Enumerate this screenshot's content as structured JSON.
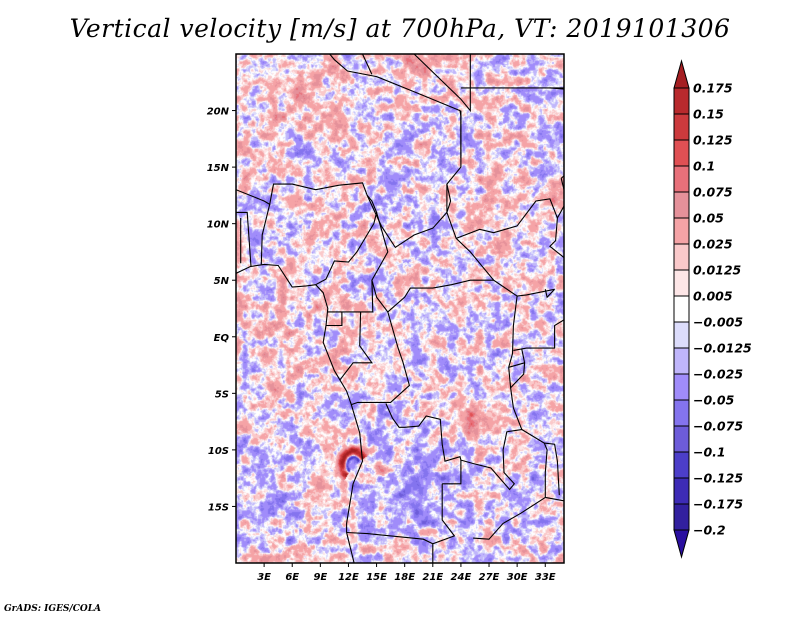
{
  "title": "Vertical velocity [m/s] at 700hPa, VT: 2019101306",
  "credit": "GrADS: IGES/COLA",
  "chart_data": {
    "type": "heatmap",
    "title": "Vertical velocity [m/s] at 700hPa, VT: 2019101306",
    "variable": "Vertical velocity",
    "units": "m/s",
    "level": "700hPa",
    "valid_time": "2019101306",
    "xlabel": "",
    "ylabel": "",
    "xlim": [
      0,
      35
    ],
    "ylim": [
      -20,
      25
    ],
    "x_ticks": [
      {
        "value": 3,
        "label": "3E"
      },
      {
        "value": 6,
        "label": "6E"
      },
      {
        "value": 9,
        "label": "9E"
      },
      {
        "value": 12,
        "label": "12E"
      },
      {
        "value": 15,
        "label": "15E"
      },
      {
        "value": 18,
        "label": "18E"
      },
      {
        "value": 21,
        "label": "21E"
      },
      {
        "value": 24,
        "label": "24E"
      },
      {
        "value": 27,
        "label": "27E"
      },
      {
        "value": 30,
        "label": "30E"
      },
      {
        "value": 33,
        "label": "33E"
      }
    ],
    "y_ticks": [
      {
        "value": 20,
        "label": "20N"
      },
      {
        "value": 15,
        "label": "15N"
      },
      {
        "value": 10,
        "label": "10N"
      },
      {
        "value": 5,
        "label": "5N"
      },
      {
        "value": 0,
        "label": "EQ"
      },
      {
        "value": -5,
        "label": "5S"
      },
      {
        "value": -10,
        "label": "10S"
      },
      {
        "value": -15,
        "label": "15S"
      }
    ],
    "colorbar": {
      "placement": "right",
      "orientation": "vertical",
      "extend": "both",
      "levels": [
        0.175,
        0.15,
        0.125,
        0.1,
        0.075,
        0.05,
        0.025,
        0.0125,
        0.005,
        -0.005,
        -0.0125,
        -0.025,
        -0.05,
        -0.075,
        -0.1,
        -0.125,
        -0.175,
        -0.2
      ],
      "level_labels": [
        "0.175",
        "0.15",
        "0.125",
        "0.1",
        "0.075",
        "0.05",
        "0.025",
        "0.0125",
        "0.005",
        "−0.005",
        "−0.0125",
        "−0.025",
        "−0.05",
        "−0.075",
        "−0.1",
        "−0.125",
        "−0.175",
        "−0.2"
      ],
      "colors": [
        "#a51f22",
        "#b82a2d",
        "#cc3a3d",
        "#e05054",
        "#e8707a",
        "#e5919a",
        "#f5a3a6",
        "#fac9ca",
        "#fde6e7",
        "#ffffff",
        "#dcdcfb",
        "#c0b6fb",
        "#a08cfa",
        "#8474ee",
        "#6d5cd9",
        "#4c3ec9",
        "#3d2bb6",
        "#32209f",
        "#2a0fa0"
      ]
    },
    "features": [
      {
        "description": "Strong ascent/descent dipole arc near Angolan coast",
        "lon": 12,
        "lat": -11.5,
        "max": 0.175,
        "min": -0.2
      },
      {
        "description": "Broad weak ascent over Gulf of Guinea",
        "lon": 4,
        "lat": 2,
        "approx": 0.03
      },
      {
        "description": "Ascent band over southern DRC/Zambia",
        "lon": 26,
        "lat": -7,
        "approx": 0.1
      },
      {
        "description": "Mixed small-scale convective speckle over Sahel and Sahara",
        "lon": 15,
        "lat": 17
      }
    ]
  }
}
